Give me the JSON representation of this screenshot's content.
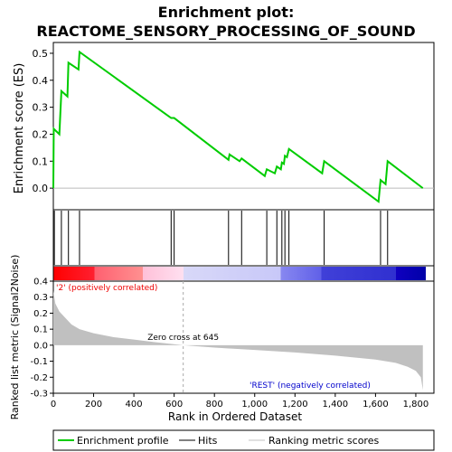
{
  "chart_data": {
    "title_line1": "Enrichment plot:",
    "title_line2": "REACTOME_SENSORY_PROCESSING_OF_SOUND",
    "es_panel": {
      "type": "line",
      "ylabel": "Enrichment score (ES)",
      "ylim": [
        -0.08,
        0.54
      ],
      "yticks": [
        "0.0",
        "0.1",
        "0.2",
        "0.3",
        "0.4",
        "0.5"
      ],
      "ytick_values": [
        0.0,
        0.1,
        0.2,
        0.3,
        0.4,
        0.5
      ],
      "line_color": "#00cc00",
      "points": [
        [
          0,
          0
        ],
        [
          2,
          0.22
        ],
        [
          30,
          0.2
        ],
        [
          40,
          0.36
        ],
        [
          70,
          0.34
        ],
        [
          75,
          0.465
        ],
        [
          125,
          0.44
        ],
        [
          130,
          0.505
        ],
        [
          585,
          0.26
        ],
        [
          600,
          0.26
        ],
        [
          870,
          0.105
        ],
        [
          875,
          0.125
        ],
        [
          925,
          0.1
        ],
        [
          935,
          0.11
        ],
        [
          1050,
          0.045
        ],
        [
          1060,
          0.07
        ],
        [
          1100,
          0.055
        ],
        [
          1110,
          0.08
        ],
        [
          1130,
          0.07
        ],
        [
          1135,
          0.095
        ],
        [
          1145,
          0.09
        ],
        [
          1150,
          0.12
        ],
        [
          1160,
          0.115
        ],
        [
          1170,
          0.145
        ],
        [
          1335,
          0.055
        ],
        [
          1345,
          0.1
        ],
        [
          1615,
          -0.05
        ],
        [
          1625,
          0.03
        ],
        [
          1650,
          0.015
        ],
        [
          1660,
          0.1
        ],
        [
          1835,
          0
        ]
      ]
    },
    "hits": [
      5,
      40,
      75,
      130,
      585,
      600,
      870,
      935,
      1060,
      1110,
      1135,
      1150,
      1170,
      1345,
      1625,
      1660
    ],
    "rank_metric": {
      "ylabel": "Ranked list metric (Signal2Noise)",
      "ylim": [
        -0.3,
        0.4
      ],
      "yticks": [
        "-0.3",
        "-0.2",
        "-0.1",
        "0.0",
        "0.1",
        "0.2",
        "0.3",
        "0.4"
      ],
      "ytick_values": [
        -0.3,
        -0.2,
        -0.1,
        0.0,
        0.1,
        0.2,
        0.3,
        0.4
      ],
      "curve": [
        [
          0,
          0.34
        ],
        [
          10,
          0.26
        ],
        [
          30,
          0.21
        ],
        [
          60,
          0.17
        ],
        [
          90,
          0.13
        ],
        [
          130,
          0.1
        ],
        [
          200,
          0.075
        ],
        [
          300,
          0.05
        ],
        [
          400,
          0.035
        ],
        [
          500,
          0.02
        ],
        [
          645,
          0
        ],
        [
          800,
          -0.015
        ],
        [
          1000,
          -0.03
        ],
        [
          1200,
          -0.045
        ],
        [
          1400,
          -0.065
        ],
        [
          1600,
          -0.09
        ],
        [
          1700,
          -0.11
        ],
        [
          1760,
          -0.135
        ],
        [
          1800,
          -0.16
        ],
        [
          1825,
          -0.2
        ],
        [
          1835,
          -0.28
        ]
      ],
      "zero_cross_label": "Zero cross at 645",
      "zero_cross_x": 645,
      "pos_label": "'2' (positively correlated)",
      "neg_label": "'REST' (negatively correlated)"
    },
    "xlabel": "Rank in Ordered Dataset",
    "xlim": [
      0,
      1890
    ],
    "xticks": [
      "0",
      "200",
      "400",
      "600",
      "800",
      "1,000",
      "1,200",
      "1,400",
      "1,600",
      "1,800"
    ],
    "xtick_values": [
      0,
      200,
      400,
      600,
      800,
      1000,
      1200,
      1400,
      1600,
      1800
    ],
    "n_genes": 1835,
    "legend": {
      "items": [
        {
          "label": "Enrichment profile",
          "color": "#00cc00"
        },
        {
          "label": "Hits",
          "color": "#000000"
        },
        {
          "label": "Ranking metric scores",
          "color": "#c0c0c0"
        }
      ]
    }
  }
}
